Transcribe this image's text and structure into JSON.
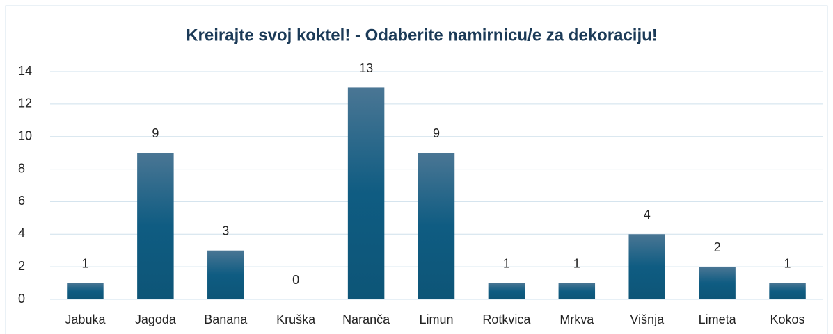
{
  "chart_data": {
    "type": "bar",
    "title": "Kreirajte svoj koktel! - Odaberite namirnicu/e za dekoraciju!",
    "categories": [
      "Jabuka",
      "Jagoda",
      "Banana",
      "Kruška",
      "Naranča",
      "Limun",
      "Rotkvica",
      "Mrkva",
      "Višnja",
      "Limeta",
      "Kokos"
    ],
    "values": [
      1,
      9,
      3,
      0,
      13,
      9,
      1,
      1,
      4,
      2,
      1
    ],
    "color": "#0e5a80",
    "ylim": [
      0,
      14
    ],
    "yticks": [
      0,
      2,
      4,
      6,
      8,
      10,
      12,
      14
    ],
    "grid": true
  }
}
